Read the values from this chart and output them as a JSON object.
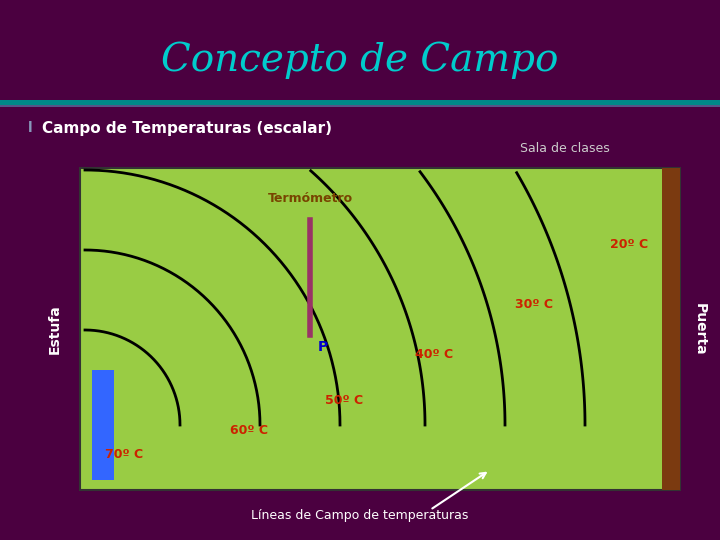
{
  "title": "Concepto de Campo",
  "title_color": "#00CCCC",
  "title_fontsize": 28,
  "bg_color": "#4B0040",
  "bullet_text": "Campo de Temperaturas (escalar)",
  "bullet_color": "#FFFFFF",
  "sala_text": "Sala de clases",
  "sala_color": "#CCCCCC",
  "room_bg": "#99CC44",
  "estufa_label": "Estufa",
  "puerta_label": "Puerta",
  "termometro_label": "Termómetro",
  "p_label": "P",
  "lineas_label": "Líneas de Campo de temperaturas",
  "temp_color": "#CC2200",
  "curve_color": "#000000",
  "estufa_color": "#3366FF",
  "puerta_color": "#7B3A10",
  "thermometer_color": "#993366",
  "p_color": "#0000CC",
  "lineas_color": "#FFFFFF",
  "teal_bar_color": "#008888"
}
